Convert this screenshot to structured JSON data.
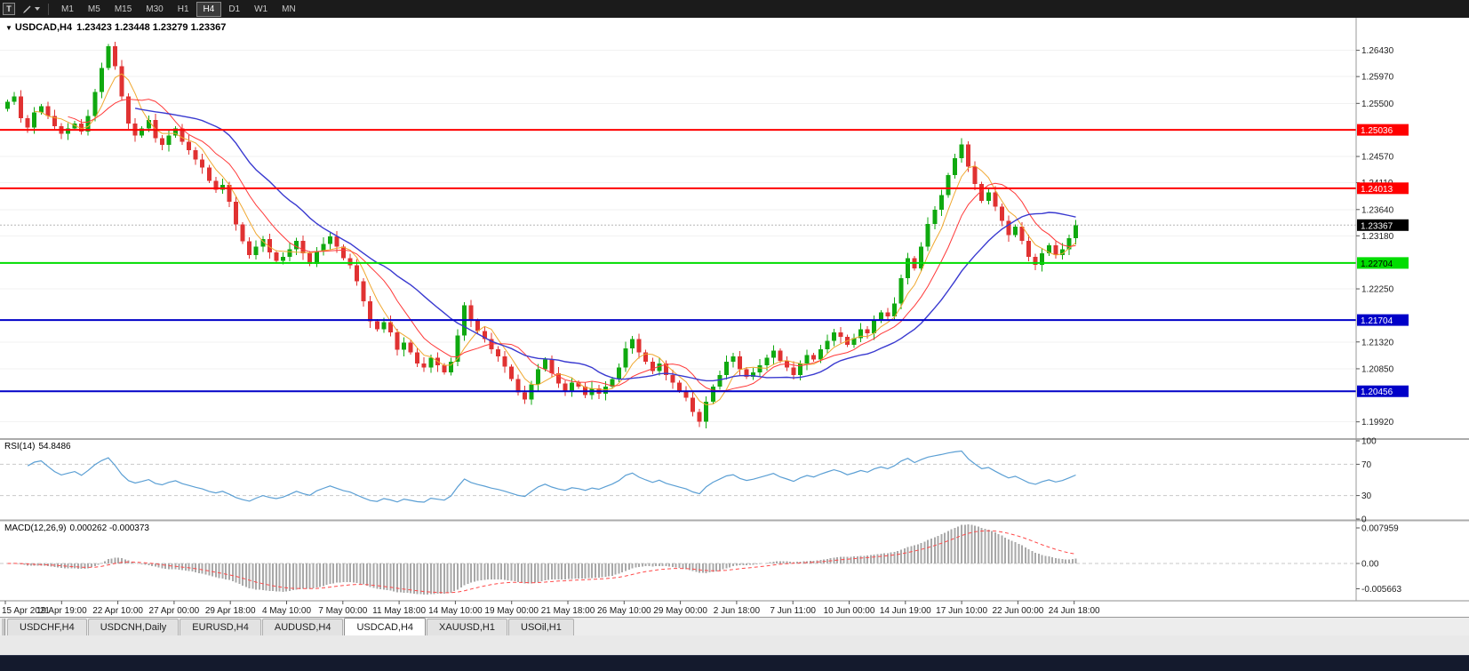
{
  "toolbar": {
    "window_icon_letter": "T",
    "timeframes": [
      "M1",
      "M5",
      "M15",
      "M30",
      "H1",
      "H4",
      "D1",
      "W1",
      "MN"
    ],
    "selected_timeframe": "H4"
  },
  "chart_header": {
    "collapse_icon": "▼",
    "symbol_period": "USDCAD,H4",
    "ohlc": "1.23423 1.23448 1.23279 1.23367"
  },
  "indicators": {
    "rsi": {
      "label": "RSI(14)",
      "value": "54.8486"
    },
    "macd": {
      "label": "MACD(12,26,9)",
      "values": "0.000262 -0.000373"
    }
  },
  "tabs": [
    {
      "label": "USDCHF,H4",
      "active": false
    },
    {
      "label": "USDCNH,Daily",
      "active": false
    },
    {
      "label": "EURUSD,H4",
      "active": false
    },
    {
      "label": "AUDUSD,H4",
      "active": false
    },
    {
      "label": "USDCAD,H4",
      "active": true
    },
    {
      "label": "XAUUSD,H1",
      "active": false
    },
    {
      "label": "USOil,H1",
      "active": false
    }
  ],
  "chart_data": {
    "type": "candlestick",
    "title": "USDCAD,H4",
    "ylim": [
      1.1965,
      1.27
    ],
    "first_open": 1.254,
    "closes": [
      1.2553,
      1.2562,
      1.2524,
      1.2508,
      1.2534,
      1.2545,
      1.2528,
      1.251,
      1.2497,
      1.2506,
      1.2515,
      1.2501,
      1.2528,
      1.257,
      1.2612,
      1.265,
      1.2615,
      1.2562,
      1.2515,
      1.2494,
      1.2506,
      1.2521,
      1.2489,
      1.2477,
      1.2494,
      1.2506,
      1.2483,
      1.2468,
      1.2452,
      1.2438,
      1.2414,
      1.2399,
      1.2407,
      1.2378,
      1.2338,
      1.2308,
      1.2284,
      1.2299,
      1.2312,
      1.2289,
      1.2274,
      1.2281,
      1.2294,
      1.2309,
      1.2287,
      1.2269,
      1.2291,
      1.2304,
      1.2317,
      1.2299,
      1.2279,
      1.2266,
      1.2238,
      1.2203,
      1.2168,
      1.2154,
      1.2167,
      1.2149,
      1.2118,
      1.2131,
      1.2114,
      1.2094,
      1.2087,
      1.2104,
      1.2091,
      1.2079,
      1.2097,
      1.2143,
      1.2196,
      1.2169,
      1.2151,
      1.2137,
      1.2119,
      1.2107,
      1.2089,
      1.2067,
      1.2044,
      1.2031,
      1.2058,
      1.2084,
      1.2101,
      1.2077,
      1.2059,
      1.2047,
      1.2061,
      1.2054,
      1.2039,
      1.2051,
      1.2041,
      1.2054,
      1.2067,
      1.2087,
      1.2121,
      1.2137,
      1.2114,
      1.2097,
      1.2081,
      1.2094,
      1.2074,
      1.2061,
      1.2047,
      1.2034,
      1.2009,
      1.1992,
      1.2027,
      1.2054,
      1.2074,
      1.2097,
      1.2107,
      1.2084,
      1.2071,
      1.2079,
      1.2091,
      1.2104,
      1.2117,
      1.2099,
      1.2087,
      1.2074,
      1.2094,
      1.2109,
      1.2101,
      1.2119,
      1.2134,
      1.2149,
      1.2141,
      1.2127,
      1.2139,
      1.2154,
      1.2147,
      1.2169,
      1.2184,
      1.2177,
      1.2199,
      1.2244,
      1.2279,
      1.2261,
      1.2299,
      1.2339,
      1.2364,
      1.2389,
      1.2424,
      1.2454,
      1.2478,
      1.2439,
      1.2409,
      1.2379,
      1.2394,
      1.2369,
      1.2344,
      1.2319,
      1.2334,
      1.2309,
      1.2281,
      1.2267,
      1.2287,
      1.2301,
      1.2284,
      1.2294,
      1.2314,
      1.23367
    ],
    "last_price": 1.23367,
    "price_ticks": [
      1.2643,
      1.2597,
      1.255,
      1.2457,
      1.2411,
      1.2364,
      1.2318,
      1.2225,
      1.2132,
      1.2085,
      1.1992
    ],
    "levels": [
      {
        "price": 1.25036,
        "color": "#FF0000",
        "text_color": "#FFFFFF"
      },
      {
        "price": 1.24013,
        "color": "#FF0000",
        "text_color": "#FFFFFF"
      },
      {
        "price": 1.22704,
        "color": "#00DD00",
        "text_color": "#000000"
      },
      {
        "price": 1.21704,
        "color": "#0000C8",
        "text_color": "#FFFFFF"
      },
      {
        "price": 1.20456,
        "color": "#0000C8",
        "text_color": "#FFFFFF"
      }
    ],
    "overlays": [
      {
        "name": "ma-fast",
        "type": "sma",
        "period": 5,
        "color": "#F0A830",
        "width": 1
      },
      {
        "name": "ma-medium",
        "type": "sma",
        "period": 10,
        "color": "#FF3A3A",
        "width": 1
      },
      {
        "name": "ma-slow",
        "type": "sma",
        "period": 20,
        "color": "#3A3AD0",
        "width": 1.4
      }
    ],
    "colors": {
      "up": "#10A910",
      "down": "#E03232",
      "last_price_bg": "#000000",
      "last_price_text": "#FFFFFF"
    },
    "subpanels": [
      {
        "name": "RSI",
        "type": "line",
        "period": 14,
        "color": "#5B9FD4",
        "guide_levels": [
          70,
          30
        ],
        "axis_ticks": [
          100,
          70,
          30,
          0
        ],
        "range": [
          0,
          100
        ]
      },
      {
        "name": "MACD",
        "type": "bar",
        "fast": 12,
        "slow": 26,
        "signal": 9,
        "bar_color": "#A8A8A8",
        "signal_color": "#FF4A4A",
        "axis_ticks": [
          0.007959,
          0,
          -0.005663
        ]
      }
    ],
    "time_labels": [
      "15 Apr 2021",
      "19 Apr 19:00",
      "22 Apr 10:00",
      "27 Apr 00:00",
      "29 Apr 18:00",
      "4 May 10:00",
      "7 May 00:00",
      "11 May 18:00",
      "14 May 10:00",
      "19 May 00:00",
      "21 May 18:00",
      "26 May 10:00",
      "29 May 00:00",
      "2 Jun 18:00",
      "7 Jun 11:00",
      "10 Jun 00:00",
      "14 Jun 19:00",
      "17 Jun 10:00",
      "22 Jun 00:00",
      "24 Jun 18:00"
    ]
  }
}
